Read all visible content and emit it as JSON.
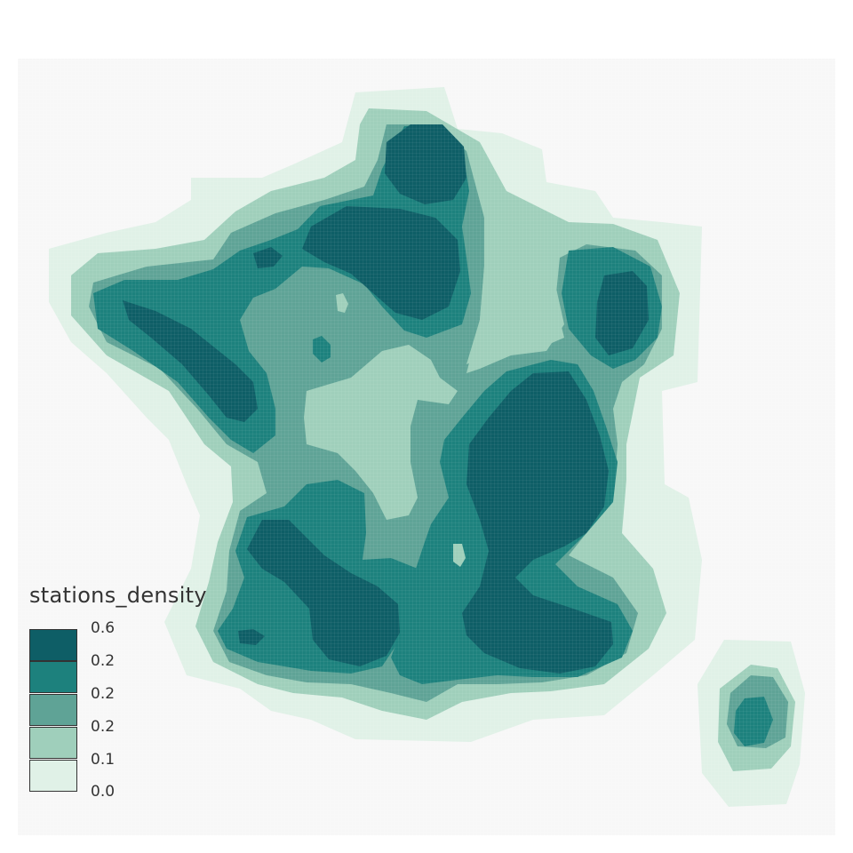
{
  "legend": {
    "title": "stations_density",
    "entries": [
      {
        "label": "0.6",
        "color": "#0e5e66"
      },
      {
        "label": "0.2",
        "color": "#1d817d"
      },
      {
        "label": "0.2",
        "color": "#5fa396"
      },
      {
        "label": "0.1",
        "color": "#9fcfbb"
      },
      {
        "label": "0.0",
        "color": "#e0f1e7"
      }
    ],
    "extra_label": "0.2"
  },
  "map": {
    "background": "#f7f7f7",
    "layer_colors": [
      "#e0f1e7",
      "#9fcfbb",
      "#5fa396",
      "#1d817d",
      "#0e5e66"
    ]
  }
}
